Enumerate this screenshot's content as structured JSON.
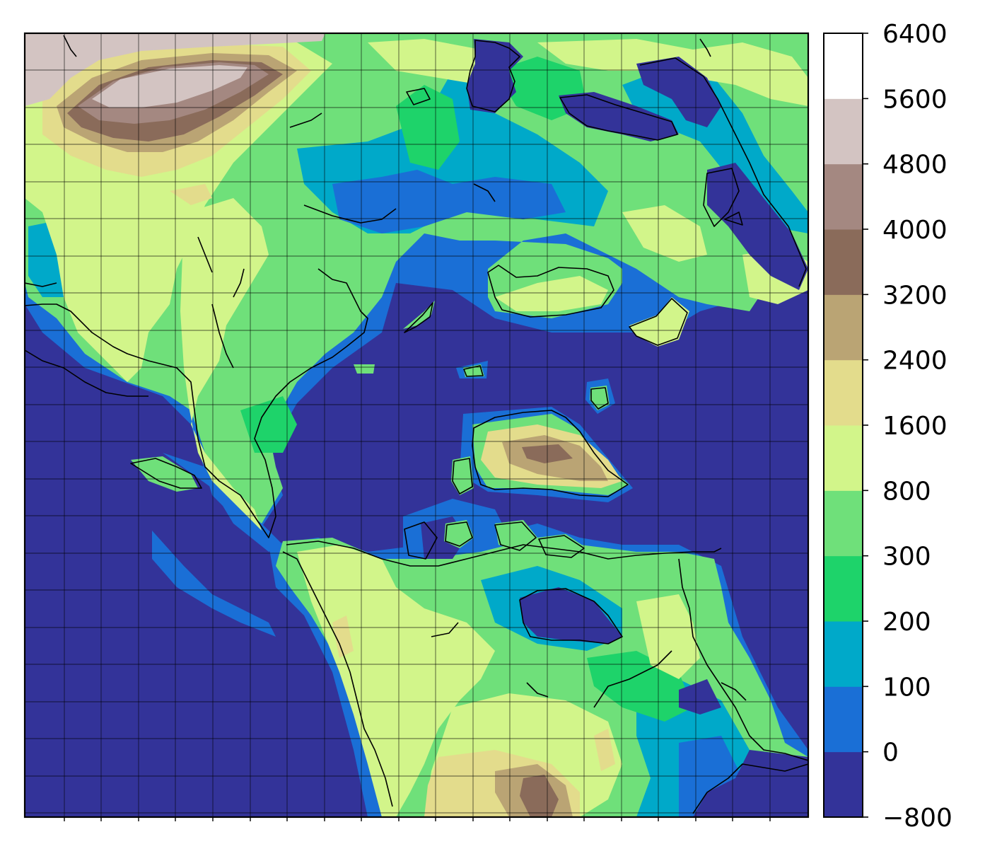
{
  "colorbar": {
    "tick_labels": [
      "−800",
      "0",
      "100",
      "200",
      "300",
      "800",
      "1600",
      "2400",
      "3200",
      "4000",
      "4800",
      "5600",
      "6400"
    ],
    "levels": [
      -800,
      0,
      100,
      200,
      300,
      800,
      1600,
      2400,
      3200,
      4000,
      4800,
      5600,
      6400
    ],
    "colors": [
      "#333399",
      "#1a6fd6",
      "#00a9c9",
      "#1ed36a",
      "#6fe07a",
      "#d2f58a",
      "#e3dc8c",
      "#baa474",
      "#8a6b5a",
      "#a48881",
      "#d3c4c2",
      "#ffffff"
    ]
  },
  "map": {
    "ocean_color": "#333399",
    "coastline_color": "#000000",
    "gridlines": true
  }
}
